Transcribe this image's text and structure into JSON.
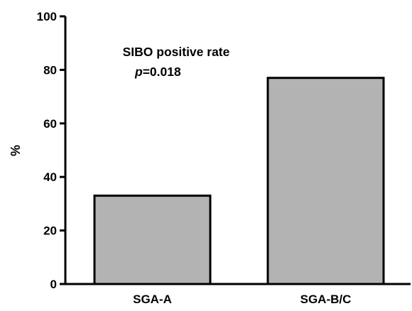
{
  "chart_data": {
    "type": "bar",
    "categories": [
      "SGA-A",
      "SGA-B/C"
    ],
    "values": [
      33,
      77
    ],
    "title": "",
    "xlabel": "",
    "ylabel": "%",
    "ylim": [
      0,
      100
    ],
    "yticks": [
      0,
      20,
      40,
      60,
      80,
      100
    ],
    "bar_color": "#b3b3b3",
    "edge_color": "#000000",
    "grid": false,
    "legend": "none",
    "annotation": {
      "line1": "SIBO positive rate",
      "p_symbol": "p",
      "p_value": "=0.018"
    }
  }
}
